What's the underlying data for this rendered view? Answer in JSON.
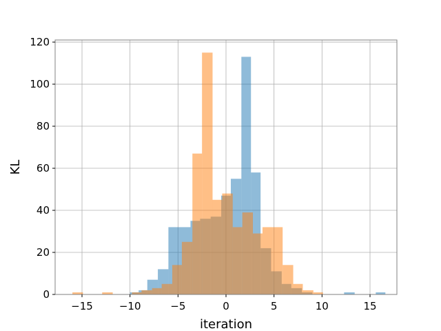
{
  "chart_data": {
    "type": "bar",
    "subtype": "overlapping-histogram",
    "title": "",
    "xlabel": "iteration",
    "ylabel": "KL",
    "xlim": [
      -17.8,
      17.8
    ],
    "ylim": [
      0,
      121
    ],
    "xticks": [
      -15,
      -10,
      -5,
      0,
      5,
      10,
      15
    ],
    "xtick_labels": [
      "−15",
      "−10",
      "−5",
      "0",
      "5",
      "10",
      "15"
    ],
    "yticks": [
      0,
      20,
      40,
      60,
      80,
      100,
      120
    ],
    "ytick_labels": [
      "0",
      "20",
      "40",
      "60",
      "80",
      "100",
      "120"
    ],
    "grid": true,
    "legend": "none",
    "series": [
      {
        "color": "#1f77b4",
        "opacity": 0.5,
        "bins": [
          {
            "x0": -10.0,
            "x1": -9.1,
            "count": 1
          },
          {
            "x0": -9.1,
            "x1": -8.2,
            "count": 2
          },
          {
            "x0": -8.2,
            "x1": -7.1,
            "count": 7
          },
          {
            "x0": -7.1,
            "x1": -6.0,
            "count": 12
          },
          {
            "x0": -6.0,
            "x1": -4.9,
            "count": 32
          },
          {
            "x0": -4.9,
            "x1": -3.7,
            "count": 32
          },
          {
            "x0": -3.7,
            "x1": -2.7,
            "count": 35
          },
          {
            "x0": -2.7,
            "x1": -1.6,
            "count": 36
          },
          {
            "x0": -1.6,
            "x1": -0.5,
            "count": 37
          },
          {
            "x0": -0.5,
            "x1": 0.5,
            "count": 47
          },
          {
            "x0": 0.5,
            "x1": 1.6,
            "count": 55
          },
          {
            "x0": 1.6,
            "x1": 2.6,
            "count": 113
          },
          {
            "x0": 2.6,
            "x1": 3.6,
            "count": 58
          },
          {
            "x0": 3.6,
            "x1": 4.7,
            "count": 22
          },
          {
            "x0": 4.7,
            "x1": 5.8,
            "count": 11
          },
          {
            "x0": 5.8,
            "x1": 6.8,
            "count": 5
          },
          {
            "x0": 6.8,
            "x1": 7.9,
            "count": 3
          },
          {
            "x0": 7.9,
            "x1": 9.0,
            "count": 1
          },
          {
            "x0": 12.3,
            "x1": 13.4,
            "count": 1
          },
          {
            "x0": 15.6,
            "x1": 16.6,
            "count": 1
          }
        ]
      },
      {
        "color": "#ff7f0e",
        "opacity": 0.5,
        "bins": [
          {
            "x0": -16.0,
            "x1": -14.9,
            "count": 1
          },
          {
            "x0": -12.9,
            "x1": -11.8,
            "count": 1
          },
          {
            "x0": -9.8,
            "x1": -8.8,
            "count": 1
          },
          {
            "x0": -8.8,
            "x1": -7.7,
            "count": 2
          },
          {
            "x0": -7.7,
            "x1": -6.7,
            "count": 3
          },
          {
            "x0": -6.7,
            "x1": -5.6,
            "count": 5
          },
          {
            "x0": -5.6,
            "x1": -4.6,
            "count": 14
          },
          {
            "x0": -4.6,
            "x1": -3.5,
            "count": 25
          },
          {
            "x0": -3.5,
            "x1": -2.5,
            "count": 67
          },
          {
            "x0": -2.5,
            "x1": -1.4,
            "count": 115
          },
          {
            "x0": -1.4,
            "x1": -0.4,
            "count": 45
          },
          {
            "x0": -0.4,
            "x1": 0.7,
            "count": 48
          },
          {
            "x0": 0.7,
            "x1": 1.7,
            "count": 32
          },
          {
            "x0": 1.7,
            "x1": 2.8,
            "count": 39
          },
          {
            "x0": 2.8,
            "x1": 3.8,
            "count": 29
          },
          {
            "x0": 3.8,
            "x1": 4.9,
            "count": 32
          },
          {
            "x0": 4.9,
            "x1": 5.9,
            "count": 32
          },
          {
            "x0": 5.9,
            "x1": 7.0,
            "count": 14
          },
          {
            "x0": 7.0,
            "x1": 8.0,
            "count": 5
          },
          {
            "x0": 8.0,
            "x1": 9.1,
            "count": 2
          },
          {
            "x0": 9.1,
            "x1": 10.1,
            "count": 1
          }
        ]
      }
    ]
  }
}
